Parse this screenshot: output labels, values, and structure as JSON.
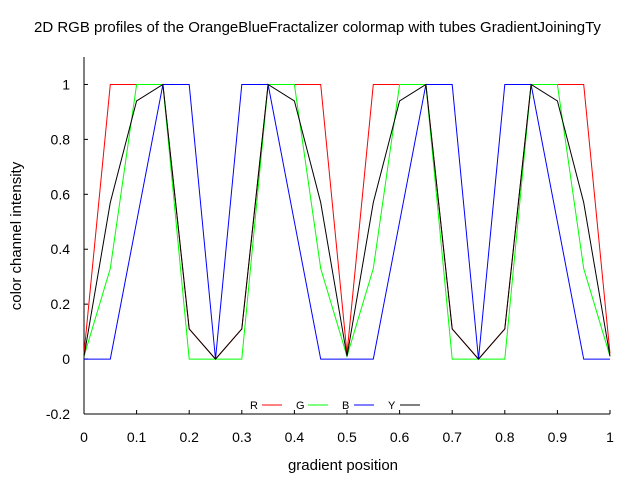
{
  "chart_data": {
    "type": "line",
    "title": "2D RGB profiles of the OrangeBlueFractalizer colormap with tubes GradientJoiningTy",
    "xlabel": "gradient position",
    "ylabel": "color channel intensity",
    "xlim": [
      0,
      1
    ],
    "ylim": [
      -0.2,
      1.1
    ],
    "xticks": [
      0,
      0.1,
      0.2,
      0.3,
      0.4,
      0.5,
      0.6,
      0.7,
      0.8,
      0.9,
      1
    ],
    "xtick_labels": [
      "0",
      "0.1",
      "0.2",
      "0.3",
      "0.4",
      "0.5",
      "0.6",
      "0.7",
      "0.8",
      "0.9",
      "1"
    ],
    "yticks": [
      -0.2,
      0,
      0.2,
      0.4,
      0.6,
      0.8,
      1
    ],
    "ytick_labels": [
      "-0.2",
      "0",
      "0.2",
      "0.4",
      "0.6",
      "0.8",
      "1"
    ],
    "grid": false,
    "legend_position": "bottom-center",
    "series": [
      {
        "name": "R",
        "color": "#ff0000",
        "x": [
          0,
          0.05,
          0.1,
          0.15,
          0.2,
          0.25,
          0.3,
          0.35,
          0.4,
          0.45,
          0.5,
          0.55,
          0.6,
          0.65,
          0.7,
          0.75,
          0.8,
          0.85,
          0.9,
          0.95,
          1
        ],
        "y": [
          0.02,
          1,
          1,
          1,
          0.11,
          0,
          0.11,
          1,
          1,
          1,
          0.02,
          1,
          1,
          1,
          0.11,
          0,
          0.11,
          1,
          1,
          1,
          0.02
        ]
      },
      {
        "name": "G",
        "color": "#00ff00",
        "x": [
          0,
          0.05,
          0.1,
          0.15,
          0.2,
          0.25,
          0.3,
          0.35,
          0.4,
          0.45,
          0.5,
          0.55,
          0.6,
          0.65,
          0.7,
          0.75,
          0.8,
          0.85,
          0.9,
          0.95,
          1
        ],
        "y": [
          0.01,
          0.33,
          1,
          1,
          0,
          0,
          0,
          1,
          1,
          0.33,
          0.01,
          0.33,
          1,
          1,
          0,
          0,
          0,
          1,
          1,
          0.33,
          0.01
        ]
      },
      {
        "name": "B",
        "color": "#0000ff",
        "x": [
          0,
          0.05,
          0.1,
          0.15,
          0.2,
          0.25,
          0.3,
          0.35,
          0.4,
          0.45,
          0.5,
          0.55,
          0.6,
          0.65,
          0.7,
          0.75,
          0.8,
          0.85,
          0.9,
          0.95,
          1
        ],
        "y": [
          0,
          0,
          0.5,
          1,
          1,
          0,
          1,
          1,
          0.5,
          0,
          0,
          0,
          0.5,
          1,
          1,
          0,
          1,
          1,
          0.5,
          0,
          0
        ]
      },
      {
        "name": "Y",
        "color": "#000000",
        "x": [
          0,
          0.05,
          0.1,
          0.15,
          0.2,
          0.25,
          0.3,
          0.35,
          0.4,
          0.45,
          0.5,
          0.55,
          0.6,
          0.65,
          0.7,
          0.75,
          0.8,
          0.85,
          0.9,
          0.95,
          1
        ],
        "y": [
          0.01,
          0.57,
          0.94,
          1,
          0.11,
          0,
          0.11,
          1,
          0.94,
          0.57,
          0.01,
          0.57,
          0.94,
          1,
          0.11,
          0,
          0.11,
          1,
          0.94,
          0.57,
          0.01
        ]
      }
    ]
  }
}
